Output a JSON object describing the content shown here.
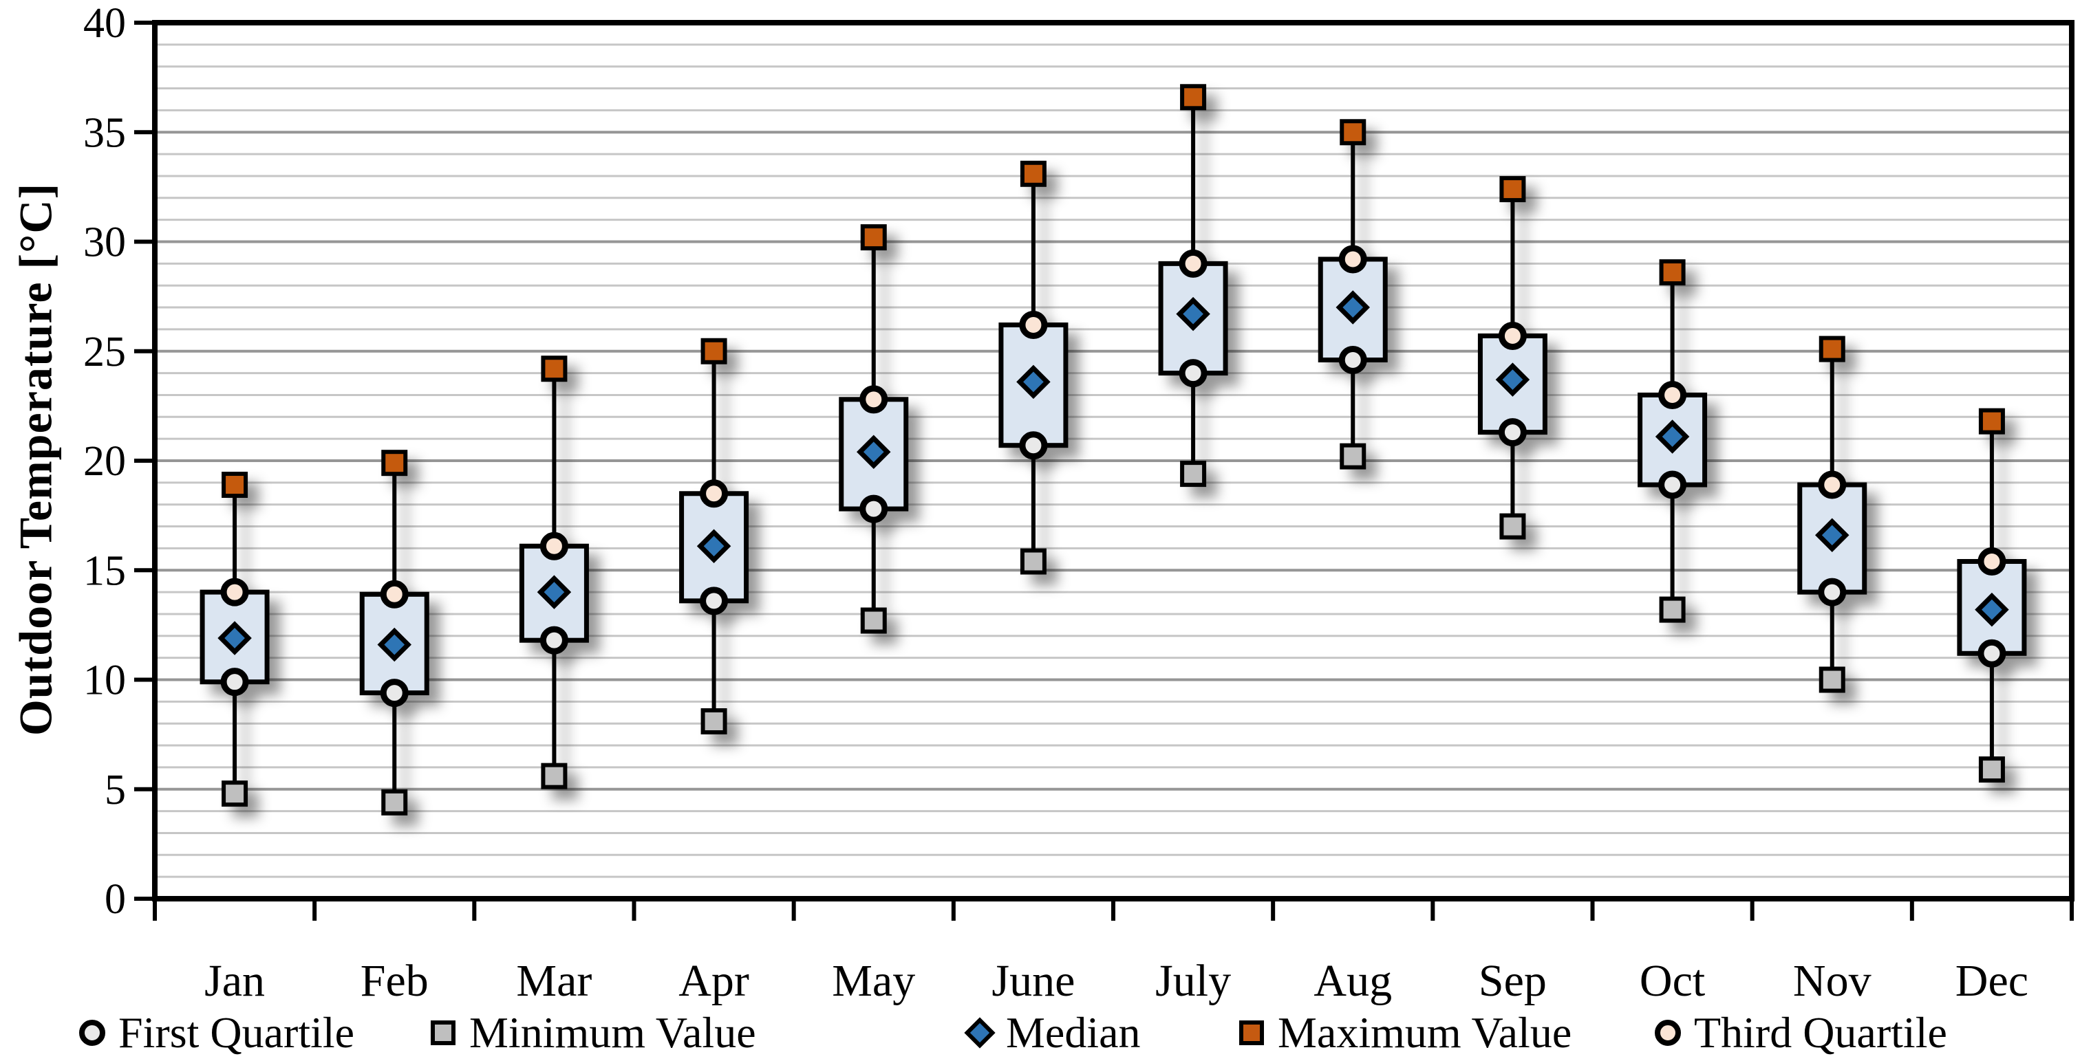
{
  "chart_data": {
    "type": "boxplot",
    "title": "",
    "xlabel": "",
    "ylabel": "Outdoor Temperature [°C]",
    "ylim": [
      0,
      40
    ],
    "ytick_major_interval": 5,
    "ytick_minor_interval": 1,
    "ytick_labels": [
      "0",
      "5",
      "10",
      "15",
      "20",
      "25",
      "30",
      "35",
      "40"
    ],
    "grid": "horizontal minor every 1, major every 5",
    "legend_position": "bottom",
    "categories": [
      "Jan",
      "Feb",
      "Mar",
      "Apr",
      "May",
      "June",
      "July",
      "Aug",
      "Sep",
      "Oct",
      "Nov",
      "Dec"
    ],
    "series": [
      {
        "month": "Jan",
        "min": 4.8,
        "first_quartile": 9.9,
        "median": 11.9,
        "third_quartile": 14.0,
        "max": 18.9
      },
      {
        "month": "Feb",
        "min": 4.4,
        "first_quartile": 9.4,
        "median": 11.6,
        "third_quartile": 13.9,
        "max": 19.9
      },
      {
        "month": "Mar",
        "min": 5.6,
        "first_quartile": 11.8,
        "median": 14.0,
        "third_quartile": 16.1,
        "max": 24.2
      },
      {
        "month": "Apr",
        "min": 8.1,
        "first_quartile": 13.6,
        "median": 16.1,
        "third_quartile": 18.5,
        "max": 25.0
      },
      {
        "month": "May",
        "min": 12.7,
        "first_quartile": 17.8,
        "median": 20.4,
        "third_quartile": 22.8,
        "max": 30.2
      },
      {
        "month": "June",
        "min": 15.4,
        "first_quartile": 20.7,
        "median": 23.6,
        "third_quartile": 26.2,
        "max": 33.1
      },
      {
        "month": "July",
        "min": 19.4,
        "first_quartile": 24.0,
        "median": 26.7,
        "third_quartile": 29.0,
        "max": 36.6
      },
      {
        "month": "Aug",
        "min": 20.2,
        "first_quartile": 24.6,
        "median": 27.0,
        "third_quartile": 29.2,
        "max": 35.0
      },
      {
        "month": "Sep",
        "min": 17.0,
        "first_quartile": 21.3,
        "median": 23.7,
        "third_quartile": 25.7,
        "max": 32.4
      },
      {
        "month": "Oct",
        "min": 13.2,
        "first_quartile": 18.9,
        "median": 21.1,
        "third_quartile": 23.0,
        "max": 28.6
      },
      {
        "month": "Nov",
        "min": 10.0,
        "first_quartile": 14.0,
        "median": 16.6,
        "third_quartile": 18.9,
        "max": 25.1
      },
      {
        "month": "Dec",
        "min": 5.9,
        "first_quartile": 11.2,
        "median": 13.2,
        "third_quartile": 15.4,
        "max": 21.8
      }
    ],
    "legend": [
      {
        "label": "First Quartile",
        "marker": "circle",
        "color": "#e9e9e9"
      },
      {
        "label": "Minimum Value",
        "marker": "square",
        "color": "#bfbfbf"
      },
      {
        "label": "Median",
        "marker": "diamond",
        "color": "#2e74b5"
      },
      {
        "label": "Maximum Value",
        "marker": "square",
        "color": "#c55a11"
      },
      {
        "label": "Third Quartile",
        "marker": "circle",
        "color": "#fbe5d6"
      }
    ],
    "colors": {
      "box_fill": "#dbe5f1",
      "stroke": "#000000",
      "median": "#2e74b5",
      "maximum": "#c55a11",
      "minimum": "#bfbfbf",
      "first_quartile": "#e9e9e9",
      "third_quartile": "#fbe5d6",
      "gridline_minor": "#c6c6c6",
      "gridline_major": "#969696"
    }
  }
}
